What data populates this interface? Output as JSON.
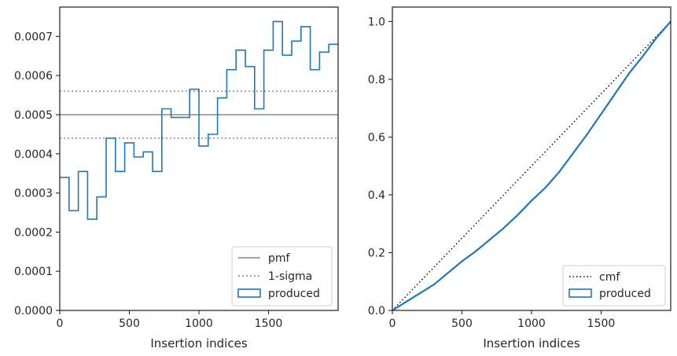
{
  "chart_data": [
    {
      "type": "histogram",
      "xlabel": "Insertion indices",
      "ylabel": "",
      "xlim": [
        0,
        2000
      ],
      "ylim": [
        0,
        0.000775
      ],
      "xticks": [
        0,
        500,
        1000,
        1500
      ],
      "xtick_labels": [
        "0",
        "500",
        "1000",
        "1500"
      ],
      "yticks": [
        0,
        0.0001,
        0.0002,
        0.0003,
        0.0004,
        0.0005,
        0.0006,
        0.0007
      ],
      "ytick_labels": [
        "0.0000",
        "0.0001",
        "0.0002",
        "0.0003",
        "0.0004",
        "0.0005",
        "0.0006",
        "0.0007"
      ],
      "grid": false,
      "legend_position": "bottom-right",
      "bin_width": 66.67,
      "pmf": 0.0005,
      "sigma_band": [
        0.00044,
        0.00056
      ],
      "series": [
        {
          "name": "produced",
          "values": [
            0.00034,
            0.000255,
            0.000355,
            0.000233,
            0.00029,
            0.00044,
            0.000355,
            0.000428,
            0.000392,
            0.000405,
            0.000355,
            0.000515,
            0.000493,
            0.000493,
            0.000565,
            0.00042,
            0.00045,
            0.000543,
            0.000615,
            0.000665,
            0.000623,
            0.000515,
            0.000665,
            0.000738,
            0.000652,
            0.000688,
            0.000725,
            0.000615,
            0.00066,
            0.00068
          ]
        }
      ],
      "legend": [
        "pmf",
        "1-sigma",
        "produced"
      ],
      "colors": {
        "pmf": "#808080",
        "sigma": "#808080",
        "produced": "#1f77b4"
      }
    },
    {
      "type": "line",
      "xlabel": "Insertion indices",
      "ylabel": "",
      "xlim": [
        0,
        2000
      ],
      "ylim": [
        0,
        1.05
      ],
      "xticks": [
        0,
        500,
        1000,
        1500
      ],
      "xtick_labels": [
        "0",
        "500",
        "1000",
        "1500"
      ],
      "yticks": [
        0,
        0.2,
        0.4,
        0.6,
        0.8,
        1.0
      ],
      "ytick_labels": [
        "0.0",
        "0.2",
        "0.4",
        "0.6",
        "0.8",
        "1.0"
      ],
      "grid": false,
      "legend_position": "bottom-right",
      "series": [
        {
          "name": "cmf",
          "x": [
            0,
            2000
          ],
          "y": [
            0,
            1
          ]
        },
        {
          "name": "produced",
          "x": [
            0,
            50,
            100,
            150,
            200,
            250,
            300,
            350,
            400,
            450,
            500,
            600,
            700,
            800,
            900,
            1000,
            1100,
            1200,
            1300,
            1400,
            1500,
            1600,
            1700,
            1800,
            1900,
            2000
          ],
          "y": [
            0,
            0.015,
            0.03,
            0.045,
            0.06,
            0.075,
            0.09,
            0.11,
            0.13,
            0.15,
            0.17,
            0.205,
            0.245,
            0.285,
            0.33,
            0.38,
            0.425,
            0.48,
            0.545,
            0.61,
            0.68,
            0.75,
            0.82,
            0.88,
            0.945,
            1.0
          ]
        }
      ],
      "legend": [
        "cmf",
        "produced"
      ],
      "colors": {
        "cmf": "#000000",
        "produced": "#1f77b4"
      }
    }
  ]
}
